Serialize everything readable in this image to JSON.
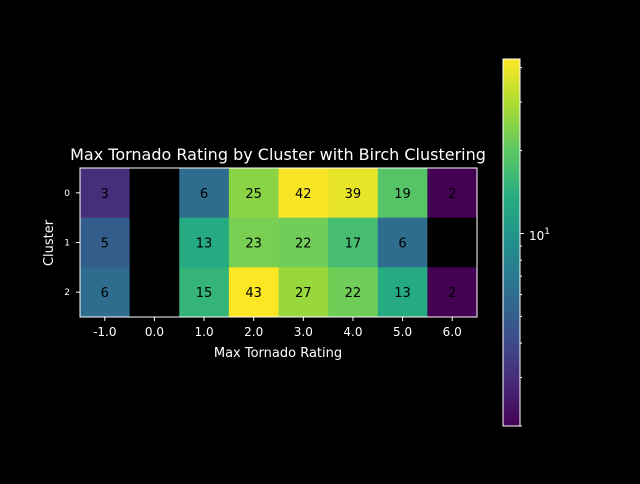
{
  "chart_data": {
    "type": "heatmap",
    "title": "Max Tornado Rating by Cluster with Birch Clustering",
    "xlabel": "Max Tornado Rating",
    "ylabel": "Cluster",
    "x_categories": [
      "-1.0",
      "0.0",
      "1.0",
      "2.0",
      "3.0",
      "4.0",
      "5.0",
      "6.0"
    ],
    "y_categories": [
      "0",
      "1",
      "2"
    ],
    "values": [
      [
        3,
        null,
        6,
        25,
        42,
        39,
        19,
        2
      ],
      [
        5,
        null,
        13,
        23,
        22,
        17,
        6,
        null
      ],
      [
        6,
        null,
        15,
        43,
        27,
        22,
        13,
        2
      ]
    ],
    "colorbar": {
      "scale": "log",
      "colormap": "viridis",
      "range": [
        2,
        43
      ],
      "tick_label": "10",
      "tick_exponent": "1",
      "tick_value": 10
    },
    "colors": {
      "background": "#000000",
      "text": "#ffffff",
      "missing": "#000000"
    }
  }
}
